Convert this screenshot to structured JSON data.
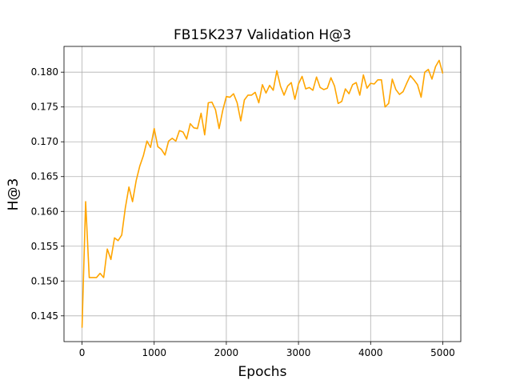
{
  "chart_data": {
    "type": "line",
    "title": "FB15K237 Validation H@3",
    "xlabel": "Epochs",
    "ylabel": "H@3",
    "xlim": [
      -250,
      5250
    ],
    "ylim": [
      0.1413,
      0.1837
    ],
    "xticks": [
      0,
      1000,
      2000,
      3000,
      4000,
      5000
    ],
    "yticks": [
      0.145,
      0.15,
      0.155,
      0.16,
      0.165,
      0.17,
      0.175,
      0.18
    ],
    "xtick_labels": [
      "0",
      "1000",
      "2000",
      "3000",
      "4000",
      "5000"
    ],
    "ytick_labels": [
      "0.145",
      "0.150",
      "0.155",
      "0.160",
      "0.165",
      "0.170",
      "0.175",
      "0.180"
    ],
    "grid": true,
    "series": [
      {
        "color": "#ffa500",
        "x": [
          0,
          50,
          100,
          150,
          200,
          250,
          300,
          350,
          400,
          450,
          500,
          550,
          600,
          650,
          700,
          750,
          800,
          850,
          900,
          950,
          1000,
          1050,
          1100,
          1150,
          1200,
          1250,
          1300,
          1350,
          1400,
          1450,
          1500,
          1550,
          1600,
          1650,
          1700,
          1750,
          1800,
          1850,
          1900,
          1950,
          2000,
          2050,
          2100,
          2150,
          2200,
          2250,
          2300,
          2350,
          2400,
          2450,
          2500,
          2550,
          2600,
          2650,
          2700,
          2750,
          2800,
          2850,
          2900,
          2950,
          3000,
          3050,
          3100,
          3150,
          3200,
          3250,
          3300,
          3350,
          3400,
          3450,
          3500,
          3550,
          3600,
          3650,
          3700,
          3750,
          3800,
          3850,
          3900,
          3950,
          4000,
          4050,
          4100,
          4150,
          4200,
          4250,
          4300,
          4350,
          4400,
          4450,
          4500,
          4550,
          4600,
          4650,
          4700,
          4750,
          4800,
          4850,
          4900,
          4950,
          5000
        ],
        "y": [
          0.1433,
          0.1614,
          0.1505,
          0.1505,
          0.1505,
          0.1511,
          0.1505,
          0.1546,
          0.1531,
          0.1562,
          0.1558,
          0.1566,
          0.1605,
          0.1635,
          0.1614,
          0.1644,
          0.1665,
          0.168,
          0.1701,
          0.1692,
          0.1719,
          0.1693,
          0.1689,
          0.1681,
          0.1701,
          0.1705,
          0.1701,
          0.1716,
          0.1714,
          0.1704,
          0.1726,
          0.172,
          0.1719,
          0.1741,
          0.171,
          0.1756,
          0.1757,
          0.1746,
          0.1719,
          0.1745,
          0.1765,
          0.1764,
          0.1769,
          0.1756,
          0.173,
          0.176,
          0.1767,
          0.1767,
          0.1771,
          0.1756,
          0.1782,
          0.177,
          0.1781,
          0.1774,
          0.1802,
          0.178,
          0.1767,
          0.178,
          0.1785,
          0.1761,
          0.1783,
          0.1794,
          0.1776,
          0.1778,
          0.1774,
          0.1793,
          0.1778,
          0.1775,
          0.1777,
          0.1792,
          0.178,
          0.1755,
          0.1758,
          0.1776,
          0.1769,
          0.1782,
          0.1785,
          0.1767,
          0.1796,
          0.1777,
          0.1784,
          0.1783,
          0.1789,
          0.1789,
          0.175,
          0.1755,
          0.179,
          0.1775,
          0.1768,
          0.1772,
          0.1784,
          0.1795,
          0.1789,
          0.1782,
          0.1764,
          0.18,
          0.1804,
          0.179,
          0.1808,
          0.1817,
          0.1798
        ]
      }
    ]
  }
}
